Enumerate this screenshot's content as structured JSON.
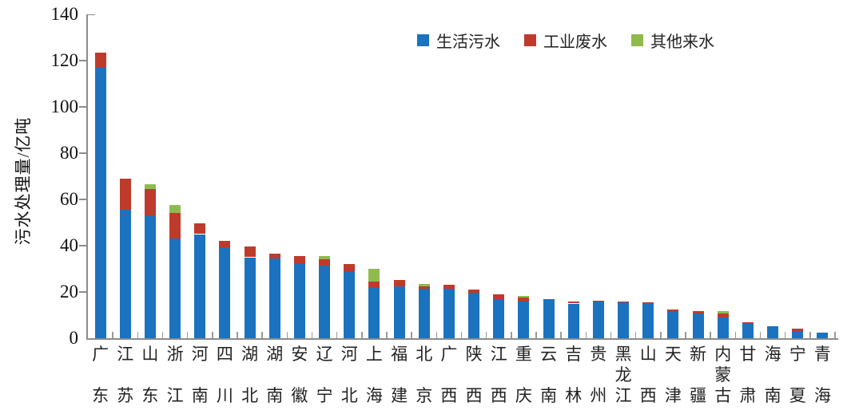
{
  "chart_data": {
    "type": "bar",
    "stacked": true,
    "title": "",
    "xlabel": "",
    "ylabel": "污水处理量/亿吨",
    "ylim": [
      0,
      140
    ],
    "yticks": [
      0,
      20,
      40,
      60,
      80,
      100,
      120,
      140
    ],
    "grid": false,
    "legend_position": "top-center",
    "categories": [
      "广东",
      "江苏",
      "山东",
      "浙江",
      "河南",
      "四川",
      "湖北",
      "湖南",
      "安徽",
      "辽宁",
      "河北",
      "上海",
      "福建",
      "北京",
      "广西",
      "陕西",
      "江西",
      "重庆",
      "云南",
      "吉林",
      "贵州",
      "黑龙江",
      "山西",
      "天津",
      "新疆",
      "内蒙古",
      "甘肃",
      "海南",
      "宁夏",
      "青海"
    ],
    "series": [
      {
        "name": "生活污水",
        "color": "#1B72BF",
        "values": [
          117,
          55.5,
          53,
          43,
          45,
          39,
          35,
          34.5,
          32,
          31.5,
          29,
          22,
          22.5,
          21.5,
          21.5,
          19.5,
          17,
          16,
          16.4,
          15,
          16,
          15.5,
          14.9,
          11.5,
          10.8,
          9,
          6.2,
          5.2,
          3.2,
          2.5
        ]
      },
      {
        "name": "工业废水",
        "color": "#BE3B2B",
        "values": [
          6.5,
          13.5,
          11.5,
          11,
          4.5,
          3,
          4.5,
          2,
          3.5,
          2.5,
          3,
          2.5,
          2.7,
          0.8,
          1.5,
          1.6,
          2,
          1.7,
          0.4,
          1,
          0.2,
          0.3,
          0.6,
          1,
          0.9,
          1.7,
          0.8,
          0,
          0.8,
          0
        ]
      },
      {
        "name": "其他来水",
        "color": "#90BA4E",
        "values": [
          0,
          0,
          2,
          3.5,
          0,
          0,
          0,
          0,
          0,
          1.5,
          0,
          5.5,
          0,
          1,
          0,
          0,
          0,
          0.5,
          0,
          0,
          0,
          0,
          0,
          0,
          0,
          1,
          0,
          0,
          0,
          0
        ]
      }
    ]
  },
  "style": {
    "axis_color": "#8c8c8c",
    "tick_color": "#9a9a9a",
    "text_color": "#1a1a1a"
  }
}
